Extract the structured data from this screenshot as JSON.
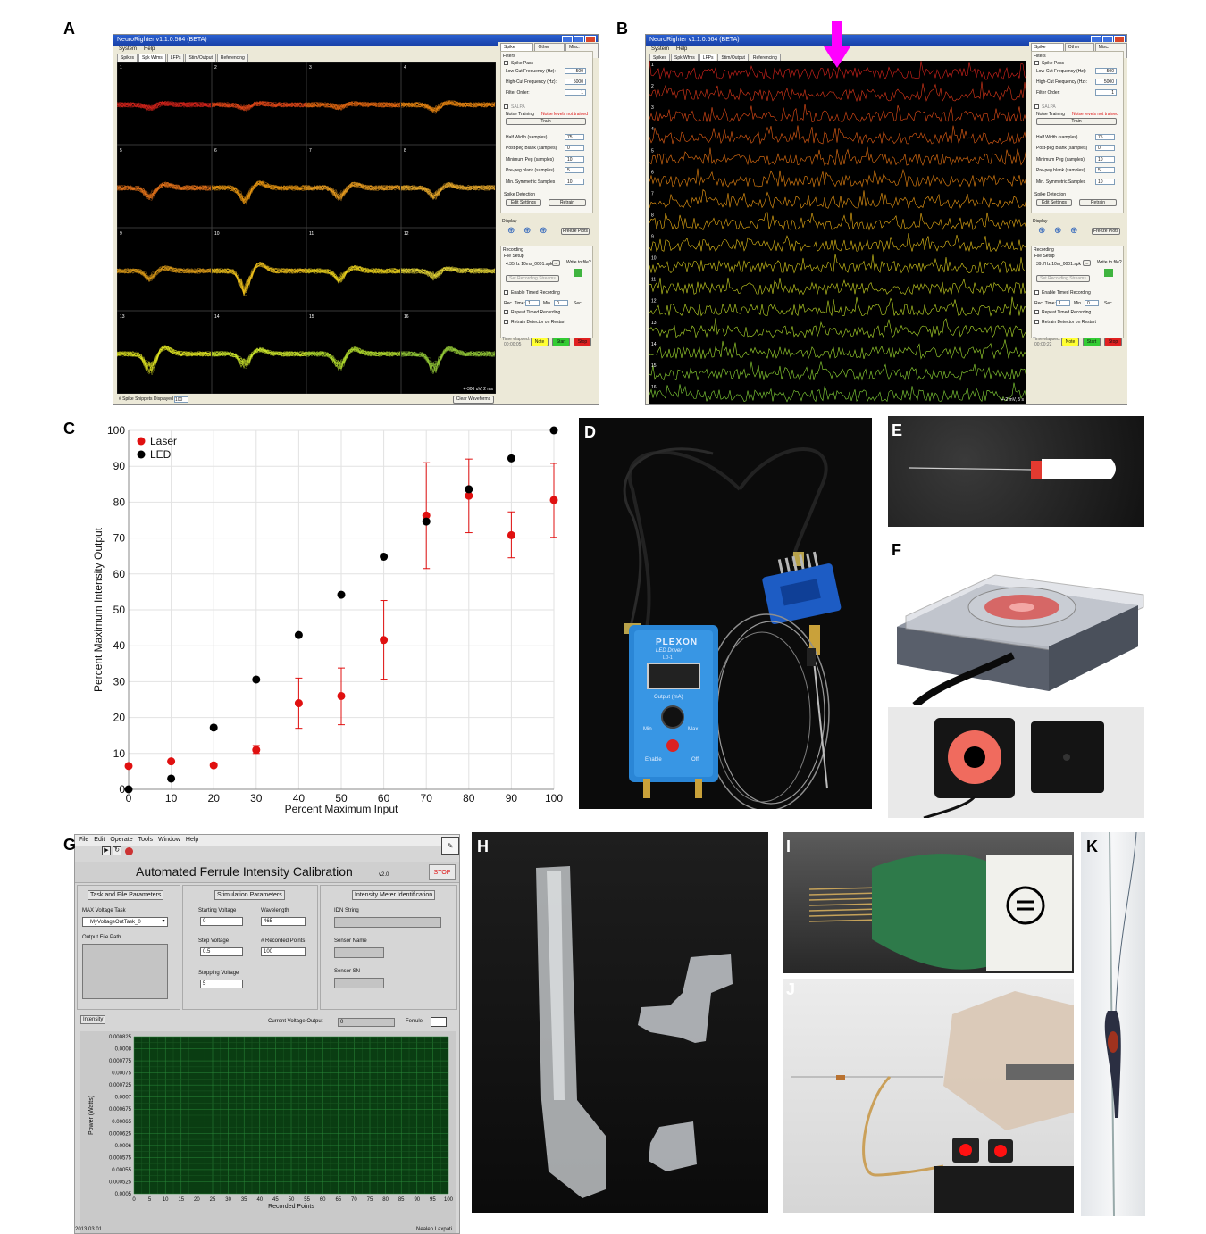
{
  "panel_labels": [
    "A",
    "B",
    "C",
    "D",
    "E",
    "F",
    "G",
    "H",
    "I",
    "J",
    "K"
  ],
  "neurorighter": {
    "window_title": "NeuroRighter v1.1.0.564 (BETA)",
    "menu": [
      "System",
      "Help"
    ],
    "tabs_a": [
      "Spikes",
      "Spk Wfms",
      "LFPs",
      "Stim/Output",
      "Referencing"
    ],
    "active_tab_a": "Spk Wfms",
    "active_tab_b": "LFPs",
    "side_tabs": [
      "Spike Filtering",
      "Other Filters",
      "Misc. Settings"
    ],
    "filters_label": "Filters",
    "spike_pass_label": "Spike Pass",
    "low_cut_label": "Low-Cut Frequency (Hz):",
    "low_cut_value": "500",
    "high_cut_label": "High-Cut Frequency (Hz):",
    "high_cut_value": "5000",
    "filter_order_label": "Filter Order:",
    "filter_order_value": "1",
    "salpa_label": "SALPA",
    "noise_training_label": "Noise Training",
    "noise_status": "Noise levels not trained",
    "train_label": "Train",
    "half_width_label": "Half Width (samples)",
    "half_width_value": "75",
    "post_peg_label": "Post-peg Blank (samples)",
    "post_peg_value": "0",
    "min_peg_label": "Minimum Peg (samples)",
    "min_peg_value": "10",
    "pre_peg_label": "Pre-peg blank (samples)",
    "pre_peg_value": "5",
    "min_sym_label": "Min. Symmetric Samples",
    "min_sym_value": "10",
    "spike_detection_label": "Spike Detection",
    "edit_settings_label": "Edit Settings",
    "retrain_label": "Retrain",
    "display_label": "Display",
    "freeze_plots_label": "Freeze Plots",
    "recording_label": "Recording",
    "file_setup_label": "File Setup",
    "file_name_a": "4.35Hz 10ms_0001.spk",
    "file_name_b": "39.7Hz 10m_0001.spk",
    "browse_label": "...",
    "write_to_file_label": "Write to file?",
    "set_streams_label": "Set Recording Streams",
    "enable_timed_label": "Enable Timed Recording",
    "rec_time_label": "Rec. Time:",
    "rec_min_value": "1",
    "min_label": "Min",
    "rec_sec_value": "0",
    "sec_label": "Sec",
    "repeat_timed_label": "Repeat Timed Recording",
    "retrain_restart_label": "Retrain Detector on Restart",
    "time_elapsed_label": "Time elapsed:",
    "time_a": "00:00:05",
    "time_b": "00:00:22",
    "note_label": "Note",
    "start_label": "Start",
    "stop_label": "Stop",
    "snippets_label": "# Spike Snippets Displayed",
    "snippets_value": "100",
    "clear_waveforms_label": "Clear Waveforms",
    "scale_a": "+-306 uV, 2 ms",
    "scale_b": "+-2 mV, 5 s",
    "channel_numbers": [
      "1",
      "2",
      "3",
      "4",
      "5",
      "6",
      "7",
      "8",
      "9",
      "10",
      "11",
      "12",
      "13",
      "14",
      "15",
      "16"
    ],
    "colors": {
      "window_bg": "#ece9d8",
      "titlebar": "#1941a8",
      "note": "#ffff33",
      "start": "#33cc33",
      "stop": "#e02020",
      "stim_arrow": "#ff00ff"
    }
  },
  "chart_data": {
    "type": "scatter",
    "xlabel": "Percent Maximum Input",
    "ylabel": "Percent Maximum Intensity Output",
    "xlim": [
      0,
      100
    ],
    "ylim": [
      0,
      100
    ],
    "xticks": [
      "0",
      "10",
      "20",
      "30",
      "40",
      "50",
      "60",
      "70",
      "80",
      "90",
      "100"
    ],
    "yticks": [
      "0",
      "10",
      "20",
      "30",
      "40",
      "50",
      "60",
      "70",
      "80",
      "90",
      "100"
    ],
    "grid": true,
    "legend_position": "top-left",
    "x": [
      0,
      10,
      20,
      30,
      40,
      50,
      60,
      70,
      80,
      90,
      100
    ],
    "series": [
      {
        "name": "Laser",
        "color": "#e01010",
        "values": [
          6.5,
          7.8,
          6.7,
          11,
          24,
          26,
          41.6,
          76.3,
          81.8,
          70.8,
          80.6
        ],
        "err_low": [
          6.5,
          7.8,
          6.7,
          10,
          17,
          18,
          30.7,
          61.5,
          71.5,
          64.5,
          70.2
        ],
        "err_high": [
          6.5,
          7.8,
          6.7,
          12.2,
          31,
          33.8,
          52.6,
          91,
          92,
          77.3,
          90.8
        ]
      },
      {
        "name": "LED",
        "color": "#000000",
        "values": [
          0,
          3,
          17.2,
          30.6,
          43,
          54.2,
          64.8,
          74.6,
          83.6,
          92.2,
          100
        ]
      }
    ]
  },
  "photo_d": {
    "brand": "PLEXON",
    "device_name": "LED Driver",
    "model": "LD-1",
    "output_label": "Output (mA)",
    "min_label": "Min",
    "max_label": "Max",
    "enable_label": "Enable",
    "off_label": "Off"
  },
  "labview": {
    "menu": [
      "File",
      "Edit",
      "Operate",
      "Tools",
      "Window",
      "Help"
    ],
    "title": "Automated Ferrule Intensity Calibration",
    "version": "v2.0",
    "stop_label": "STOP",
    "task_file_label": "Task and File Parameters",
    "stim_params_label": "Stimulation Parameters",
    "meter_id_label": "Intensity Meter Identification",
    "max_voltage_task_label": "MAX Voltage Task",
    "max_voltage_task_value": "MyVoltageOutTask_0",
    "output_path_label": "Output File Path",
    "starting_voltage_label": "Starting Voltage",
    "starting_voltage_value": "0",
    "wavelength_label": "Wavelength",
    "wavelength_value": "465",
    "step_voltage_label": "Step Voltage",
    "step_voltage_value": "0.5",
    "recorded_points_label": "# Recorded Points",
    "recorded_points_value": "100",
    "stopping_voltage_label": "Stopping Voltage",
    "stopping_voltage_value": "5",
    "idn_label": "IDN String",
    "sensor_name_label": "Sensor Name",
    "sensor_sn_label": "Sensor SN",
    "intensity_tab": "Intensity",
    "current_voltage_label": "Current Voltage Output",
    "current_voltage_value": "0",
    "ferrule_label": "Ferrule",
    "y_axis_label": "Power (Watts)",
    "x_axis_label": "Recorded Points",
    "y_ticks": [
      "0.000825",
      "0.0008",
      "0.000775",
      "0.00075",
      "0.000725",
      "0.0007",
      "0.000675",
      "0.00065",
      "0.000625",
      "0.0006",
      "0.000575",
      "0.00055",
      "0.000525",
      "0.0005"
    ],
    "x_ticks": [
      "0",
      "5",
      "10",
      "15",
      "20",
      "25",
      "30",
      "35",
      "40",
      "45",
      "50",
      "55",
      "60",
      "65",
      "70",
      "75",
      "80",
      "85",
      "90",
      "95",
      "100"
    ],
    "footer_left": "2013.03.01",
    "footer_right": "Nealen Laxpati"
  }
}
